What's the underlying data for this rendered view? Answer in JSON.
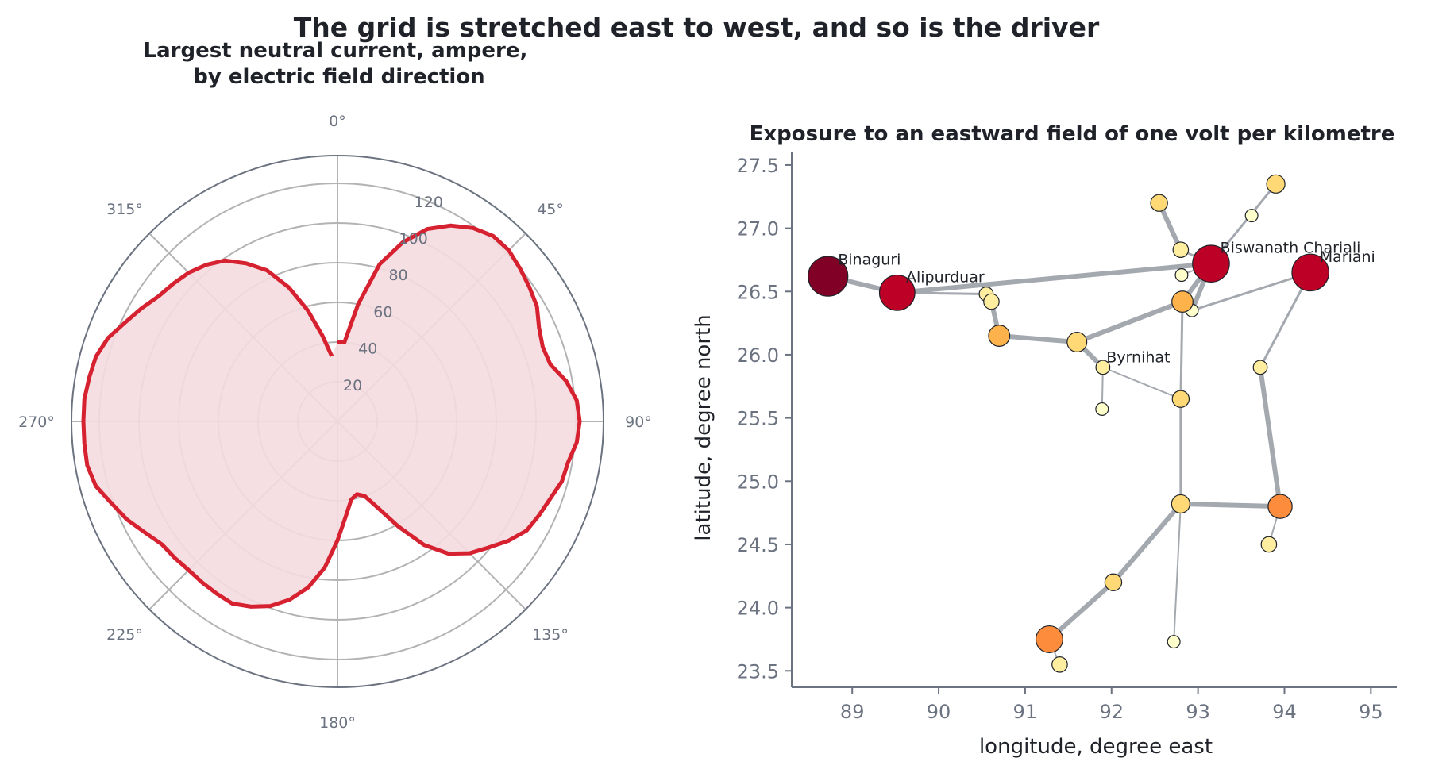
{
  "figure": {
    "suptitle": "The grid is stretched east to west, and so is the driver"
  },
  "chart_data": [
    {
      "type": "line",
      "subtype": "polar",
      "title": "Largest neutral current, ampere,\nby electric field direction",
      "angle_ticks": [
        "0°",
        "45°",
        "90°",
        "135°",
        "180°",
        "225°",
        "270°",
        "315°"
      ],
      "radial_ticks": [
        20,
        40,
        60,
        80,
        100,
        120
      ],
      "rlim": [
        0,
        134
      ],
      "theta_zero": "north",
      "theta_direction": "clockwise",
      "grid": true,
      "line_color": "#d62230",
      "fill_color": "#f5dcdf",
      "series": [
        {
          "theta_deg": [
            0,
            5,
            10,
            15,
            20,
            25,
            30,
            35,
            40,
            45,
            50,
            55,
            60,
            65,
            70,
            75,
            80,
            85,
            90,
            95,
            100,
            105,
            110,
            115,
            120,
            125,
            130,
            135,
            140,
            145,
            150,
            155,
            160,
            165,
            170,
            175,
            180,
            185,
            190,
            195,
            200,
            205,
            210,
            215,
            220,
            225,
            230,
            235,
            240,
            245,
            250,
            255,
            260,
            265,
            270,
            275,
            280,
            285,
            290,
            295,
            300,
            305,
            310,
            315,
            320,
            325,
            330,
            335,
            340,
            345,
            350,
            355
          ],
          "r": [
            40,
            40,
            60,
            82,
            96,
            107,
            114,
            119,
            122,
            122,
            120,
            118,
            116,
            112,
            110,
            111,
            117,
            121,
            122,
            121,
            118,
            117,
            114,
            112,
            110,
            105,
            99,
            94,
            87,
            76,
            61,
            48,
            40,
            38,
            40,
            48,
            60,
            74,
            85,
            93,
            99,
            103,
            106,
            106,
            106,
            106,
            107,
            108,
            112,
            117,
            121,
            126,
            128,
            128,
            128,
            128,
            127,
            126,
            123,
            118,
            114,
            110,
            108,
            106,
            103,
            99,
            92,
            84,
            72,
            58,
            44,
            33
          ]
        }
      ]
    },
    {
      "type": "scatter",
      "title": "Exposure to an eastward field of one volt per kilometre",
      "xlabel": "longitude, degree east",
      "ylabel": "latitude, degree north",
      "xlim": [
        88.3,
        95.3
      ],
      "ylim": [
        23.37,
        27.6
      ],
      "xticks": [
        "89",
        "90",
        "91",
        "92",
        "93",
        "94",
        "95"
      ],
      "yticks": [
        "23.5",
        "24.0",
        "24.5",
        "25.0",
        "25.5",
        "26.0",
        "26.5",
        "27.0",
        "27.5"
      ],
      "grid": false,
      "nodes": [
        {
          "name": "Binaguri",
          "x": 88.72,
          "y": 26.62,
          "level": 1.0,
          "label": "Binaguri"
        },
        {
          "name": "Alipurduar",
          "x": 89.52,
          "y": 26.49,
          "level": 0.85,
          "label": "Alipurduar"
        },
        {
          "name": "Biswanath Chariali",
          "x": 93.15,
          "y": 26.72,
          "level": 0.9,
          "label": "Biswanath Chariali"
        },
        {
          "name": "Mariani",
          "x": 94.3,
          "y": 26.65,
          "level": 0.9,
          "label": "Mariani"
        },
        {
          "name": "Byrnihat",
          "x": 91.9,
          "y": 25.9,
          "level": 0.1,
          "label": "Byrnihat"
        },
        {
          "name": "n1",
          "x": 90.55,
          "y": 26.48,
          "level": 0.1,
          "label": ""
        },
        {
          "name": "n2",
          "x": 90.61,
          "y": 26.42,
          "level": 0.15,
          "label": ""
        },
        {
          "name": "n3",
          "x": 90.7,
          "y": 26.15,
          "level": 0.35,
          "label": ""
        },
        {
          "name": "n4",
          "x": 91.6,
          "y": 26.1,
          "level": 0.3,
          "label": ""
        },
        {
          "name": "n5",
          "x": 92.82,
          "y": 26.42,
          "level": 0.35,
          "label": ""
        },
        {
          "name": "n6",
          "x": 92.93,
          "y": 26.35,
          "level": 0.05,
          "label": ""
        },
        {
          "name": "n7",
          "x": 92.8,
          "y": 26.83,
          "level": 0.15,
          "label": ""
        },
        {
          "name": "n8",
          "x": 92.81,
          "y": 26.63,
          "level": 0.05,
          "label": ""
        },
        {
          "name": "n9",
          "x": 92.55,
          "y": 27.2,
          "level": 0.2,
          "label": ""
        },
        {
          "name": "n10",
          "x": 93.62,
          "y": 27.1,
          "level": 0.05,
          "label": ""
        },
        {
          "name": "n11",
          "x": 93.9,
          "y": 27.35,
          "level": 0.25,
          "label": ""
        },
        {
          "name": "n12",
          "x": 93.72,
          "y": 25.9,
          "level": 0.1,
          "label": ""
        },
        {
          "name": "n13",
          "x": 91.89,
          "y": 25.57,
          "level": 0.05,
          "label": ""
        },
        {
          "name": "n14",
          "x": 92.8,
          "y": 25.65,
          "level": 0.2,
          "label": ""
        },
        {
          "name": "n15",
          "x": 92.8,
          "y": 24.82,
          "level": 0.25,
          "label": ""
        },
        {
          "name": "n16",
          "x": 93.95,
          "y": 24.8,
          "level": 0.45,
          "label": ""
        },
        {
          "name": "n17",
          "x": 93.82,
          "y": 24.5,
          "level": 0.15,
          "label": ""
        },
        {
          "name": "n18",
          "x": 92.02,
          "y": 24.2,
          "level": 0.2,
          "label": ""
        },
        {
          "name": "n19",
          "x": 91.28,
          "y": 23.75,
          "level": 0.55,
          "label": ""
        },
        {
          "name": "n20",
          "x": 91.4,
          "y": 23.55,
          "level": 0.15,
          "label": ""
        },
        {
          "name": "n21",
          "x": 92.72,
          "y": 23.73,
          "level": 0.05,
          "label": ""
        }
      ],
      "lines": [
        {
          "from": "Binaguri",
          "to": "Alipurduar",
          "weight": "heavy"
        },
        {
          "from": "Alipurduar",
          "to": "Biswanath Chariali",
          "weight": "heavy"
        },
        {
          "from": "Alipurduar",
          "to": "n1",
          "weight": "medium"
        },
        {
          "from": "n1",
          "to": "n2",
          "weight": "medium"
        },
        {
          "from": "n2",
          "to": "n3",
          "weight": "heavy"
        },
        {
          "from": "n3",
          "to": "n4",
          "weight": "heavy"
        },
        {
          "from": "n4",
          "to": "n5",
          "weight": "heavy"
        },
        {
          "from": "n4",
          "to": "Byrnihat",
          "weight": "heavy"
        },
        {
          "from": "Byrnihat",
          "to": "n13",
          "weight": "thin"
        },
        {
          "from": "Byrnihat",
          "to": "n14",
          "weight": "thin"
        },
        {
          "from": "n5",
          "to": "Biswanath Chariali",
          "weight": "heavy"
        },
        {
          "from": "n6",
          "to": "Biswanath Chariali",
          "weight": "heavy"
        },
        {
          "from": "n6",
          "to": "Mariani",
          "weight": "medium"
        },
        {
          "from": "n9",
          "to": "n7",
          "weight": "heavy"
        },
        {
          "from": "n7",
          "to": "Biswanath Chariali",
          "weight": "medium"
        },
        {
          "from": "Biswanath Chariali",
          "to": "n11",
          "weight": "medium"
        },
        {
          "from": "n8",
          "to": "Biswanath Chariali",
          "weight": "thin"
        },
        {
          "from": "n5",
          "to": "n14",
          "weight": "medium"
        },
        {
          "from": "n14",
          "to": "n15",
          "weight": "medium"
        },
        {
          "from": "n15",
          "to": "n16",
          "weight": "heavy"
        },
        {
          "from": "Mariani",
          "to": "n12",
          "weight": "medium"
        },
        {
          "from": "n12",
          "to": "n16",
          "weight": "heavy"
        },
        {
          "from": "n16",
          "to": "n17",
          "weight": "thin"
        },
        {
          "from": "n15",
          "to": "n18",
          "weight": "heavy"
        },
        {
          "from": "n18",
          "to": "n19",
          "weight": "heavy"
        },
        {
          "from": "n19",
          "to": "n20",
          "weight": "thin"
        },
        {
          "from": "n15",
          "to": "n21",
          "weight": "thin"
        }
      ],
      "colormap": [
        "#ffffcc",
        "#ffeda0",
        "#fed976",
        "#feb24c",
        "#fd8d3c",
        "#fc4e2a",
        "#e31a1c",
        "#bd0026",
        "#800026"
      ],
      "line_color": "#a4a9b0"
    }
  ]
}
